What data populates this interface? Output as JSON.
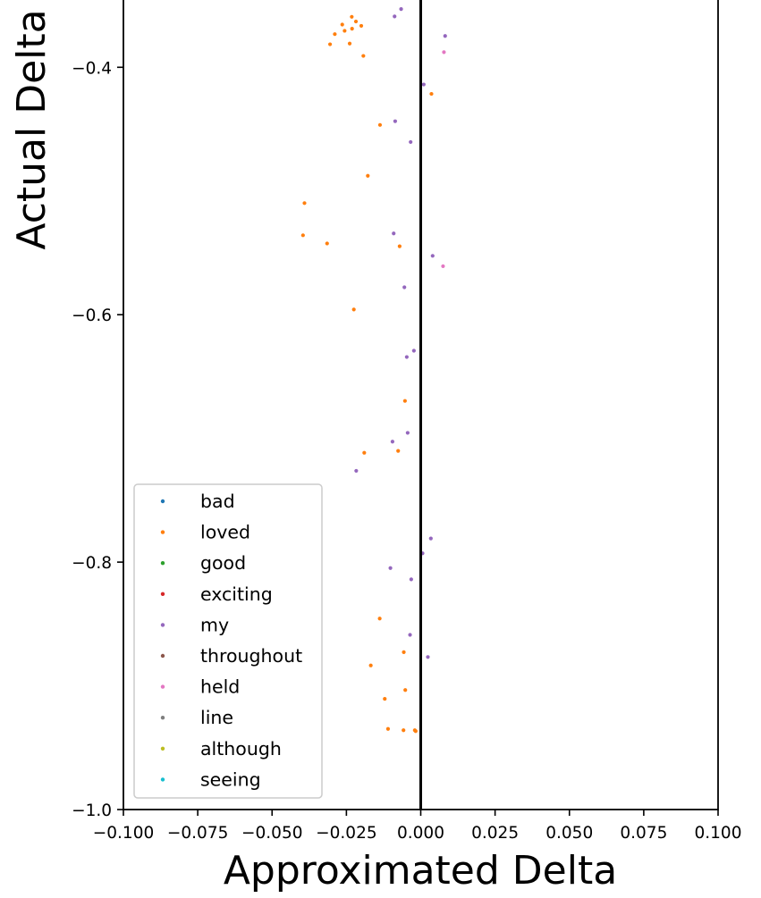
{
  "chart_data": {
    "type": "scatter",
    "xlabel": "Approximated Delta",
    "ylabel": "Actual Delta",
    "xlim": [
      -0.1,
      0.1
    ],
    "ylim": [
      -1.0,
      -0.35
    ],
    "xticks": [
      "−0.100",
      "−0.075",
      "−0.050",
      "−0.025",
      "0.000",
      "0.025",
      "0.050",
      "0.075",
      "0.100"
    ],
    "xtick_values": [
      -0.1,
      -0.075,
      -0.05,
      -0.025,
      0.0,
      0.025,
      0.05,
      0.075,
      0.1
    ],
    "yticks": [
      "−1.0",
      "−0.8",
      "−0.6",
      "−0.4"
    ],
    "ytick_values": [
      -1.0,
      -0.8,
      -0.6,
      -0.4
    ],
    "reference_line_x": 0.0,
    "grid": false,
    "legend_position": "lower-left",
    "series": [
      {
        "name": "bad",
        "color": "#1f77b4",
        "points": []
      },
      {
        "name": "loved",
        "color": "#ff7f0e",
        "points": [
          [
            -0.0232,
            -0.3592
          ],
          [
            -0.0218,
            -0.363
          ],
          [
            -0.0264,
            -0.3655
          ],
          [
            -0.02,
            -0.3665
          ],
          [
            -0.0231,
            -0.3688
          ],
          [
            -0.0256,
            -0.3705
          ],
          [
            -0.0289,
            -0.3732
          ],
          [
            -0.0305,
            -0.3814
          ],
          [
            -0.0239,
            -0.3808
          ],
          [
            -0.0193,
            -0.3908
          ],
          [
            0.0036,
            -0.4215
          ],
          [
            -0.0137,
            -0.4466
          ],
          [
            -0.0178,
            -0.4877
          ],
          [
            -0.0391,
            -0.5098
          ],
          [
            -0.0396,
            -0.5358
          ],
          [
            -0.0315,
            -0.5424
          ],
          [
            -0.0071,
            -0.5447
          ],
          [
            -0.0225,
            -0.5958
          ],
          [
            -0.0053,
            -0.6697
          ],
          [
            -0.019,
            -0.7116
          ],
          [
            -0.0076,
            -0.7101
          ],
          [
            -0.0138,
            -0.8456
          ],
          [
            -0.0057,
            -0.8728
          ],
          [
            -0.0168,
            -0.8835
          ],
          [
            -0.0052,
            -0.9034
          ],
          [
            -0.0121,
            -0.9105
          ],
          [
            -0.011,
            -0.9348
          ],
          [
            -0.0058,
            -0.9359
          ],
          [
            -0.0017,
            -0.9366
          ],
          [
            -0.002,
            -0.9359
          ]
        ]
      },
      {
        "name": "good",
        "color": "#2ca02c",
        "points": []
      },
      {
        "name": "exciting",
        "color": "#d62728",
        "points": []
      },
      {
        "name": "my",
        "color": "#9467bd",
        "points": [
          [
            -0.0066,
            -0.3529
          ],
          [
            -0.0088,
            -0.3589
          ],
          [
            0.0082,
            -0.3747
          ],
          [
            0.001,
            -0.4139
          ],
          [
            -0.0086,
            -0.4436
          ],
          [
            -0.0034,
            -0.4604
          ],
          [
            -0.0091,
            -0.5343
          ],
          [
            0.004,
            -0.5524
          ],
          [
            -0.0055,
            -0.5778
          ],
          [
            -0.0023,
            -0.6291
          ],
          [
            -0.0047,
            -0.6342
          ],
          [
            -0.0044,
            -0.6955
          ],
          [
            -0.0095,
            -0.7026
          ],
          [
            -0.0217,
            -0.7262
          ],
          [
            0.0034,
            -0.7809
          ],
          [
            0.0006,
            -0.7929
          ],
          [
            -0.0102,
            -0.8048
          ],
          [
            -0.0032,
            -0.8139
          ],
          [
            -0.0036,
            -0.8588
          ],
          [
            0.0024,
            -0.8767
          ]
        ]
      },
      {
        "name": "throughout",
        "color": "#8c564b",
        "points": []
      },
      {
        "name": "held",
        "color": "#e377c2",
        "points": [
          [
            0.0078,
            -0.3878
          ],
          [
            0.0075,
            -0.5608
          ]
        ]
      },
      {
        "name": "line",
        "color": "#7f7f7f",
        "points": []
      },
      {
        "name": "although",
        "color": "#bcbd22",
        "points": []
      },
      {
        "name": "seeing",
        "color": "#17becf",
        "points": []
      }
    ]
  }
}
